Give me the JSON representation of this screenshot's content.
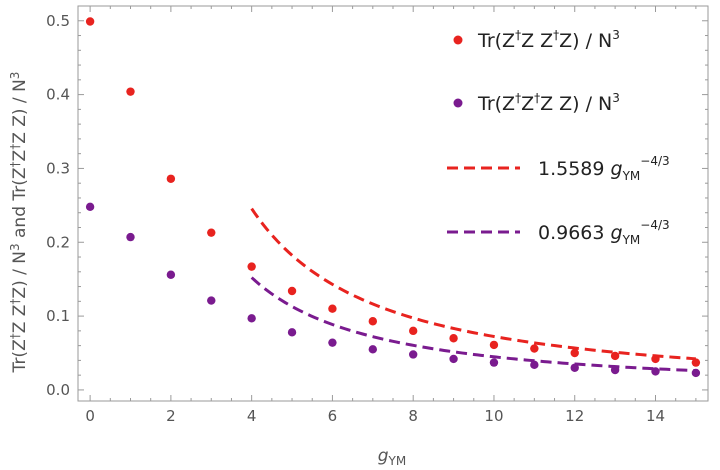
{
  "chart_data": {
    "type": "scatter",
    "xlabel": {
      "main": "g",
      "sub": "YM"
    },
    "ylabel": {
      "p1": "Tr(Z",
      "sup1": "†",
      "p2": "Z Z",
      "sup2": "†",
      "p3": "Z) / N",
      "sup3": "3",
      "p4": " and Tr(Z",
      "sup4": "†",
      "p5": "Z",
      "sup5": "†",
      "p6": "Z Z) / N",
      "sup6": "3"
    },
    "xlim": [
      -0.3,
      15.3
    ],
    "ylim": [
      -0.015,
      0.52
    ],
    "xticks": [
      0,
      2,
      4,
      6,
      8,
      10,
      12,
      14
    ],
    "yticks": [
      0.0,
      0.1,
      0.2,
      0.3,
      0.4,
      0.5
    ],
    "ytick_labels": [
      "0.0",
      "0.1",
      "0.2",
      "0.3",
      "0.4",
      "0.5"
    ],
    "series": [
      {
        "name": "Tr(Z†Z Z†Z) / N3",
        "kind": "points",
        "color": "#e8231f",
        "x": [
          0,
          1,
          2,
          3,
          4,
          5,
          6,
          7,
          8,
          9,
          10,
          11,
          12,
          13,
          14,
          15
        ],
        "y": [
          0.499,
          0.404,
          0.286,
          0.213,
          0.167,
          0.134,
          0.11,
          0.093,
          0.08,
          0.07,
          0.061,
          0.056,
          0.05,
          0.046,
          0.042,
          0.037
        ]
      },
      {
        "name": "Tr(Z†Z†Z Z) / N3",
        "kind": "points",
        "color": "#7a1b8f",
        "x": [
          0,
          1,
          2,
          3,
          4,
          5,
          6,
          7,
          8,
          9,
          10,
          11,
          12,
          13,
          14,
          15
        ],
        "y": [
          0.248,
          0.207,
          0.156,
          0.121,
          0.097,
          0.078,
          0.064,
          0.055,
          0.048,
          0.042,
          0.037,
          0.034,
          0.03,
          0.027,
          0.025,
          0.023
        ]
      },
      {
        "name": "1.5589 gYM^-4/3",
        "kind": "fit",
        "color": "#e8231f",
        "coef": 1.5589,
        "exponent": -1.3333333,
        "x_range": [
          4,
          15
        ]
      },
      {
        "name": "0.9663 gYM^-4/3",
        "kind": "fit",
        "color": "#7a1b8f",
        "coef": 0.9663,
        "exponent": -1.3333333,
        "x_range": [
          4,
          15
        ]
      }
    ],
    "legend": {
      "placement": "top-right",
      "entries": [
        {
          "pre": "Tr(Z",
          "s1": "†",
          "mid1": "Z Z",
          "s2": "†",
          "mid2": "Z) / N",
          "s3": "3"
        },
        {
          "pre": "Tr(Z",
          "s1": "†",
          "mid1": "Z",
          "s2": "†",
          "mid2": "Z Z) / N",
          "s3": "3"
        },
        {
          "coef": "1.5589",
          "g": "g",
          "sub": "YM",
          "sup": "−4/3"
        },
        {
          "coef": "0.9663",
          "g": "g",
          "sub": "YM",
          "sup": "−4/3"
        }
      ]
    }
  }
}
